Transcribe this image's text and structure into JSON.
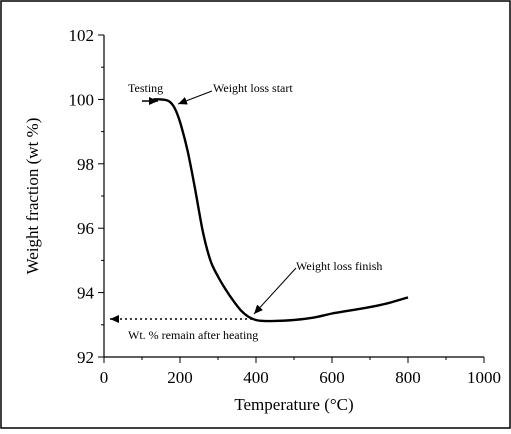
{
  "chart_data": {
    "type": "line",
    "title": "",
    "xlabel": "Temperature (°C)",
    "ylabel": "Weight fraction (wt %)",
    "xlim": [
      0,
      1000
    ],
    "ylim": [
      92,
      102
    ],
    "xticks": [
      0,
      200,
      400,
      600,
      800,
      1000
    ],
    "yticks": [
      92,
      94,
      96,
      98,
      100,
      102
    ],
    "grid": false,
    "legend": "none",
    "series": [
      {
        "x": [
          130,
          150,
          170,
          185,
          200,
          220,
          240,
          260,
          280,
          300,
          320,
          340,
          360,
          380,
          400,
          420,
          450,
          500,
          550,
          600,
          650,
          700,
          750,
          800
        ],
        "y": [
          100.0,
          100.0,
          99.95,
          99.75,
          99.3,
          98.4,
          97.2,
          95.9,
          95.0,
          94.5,
          94.1,
          93.75,
          93.45,
          93.25,
          93.15,
          93.12,
          93.12,
          93.15,
          93.22,
          93.35,
          93.45,
          93.55,
          93.68,
          93.85
        ]
      }
    ],
    "annotations": [
      {
        "text": "Testing",
        "x": 140,
        "y": 100.0
      },
      {
        "text": "Weight loss start",
        "x": 185,
        "y": 99.75
      },
      {
        "text": "Weight loss finish",
        "x": 400,
        "y": 93.15
      },
      {
        "text": "Wt. % remain after heating",
        "x": 20,
        "y": 93.1
      }
    ]
  }
}
